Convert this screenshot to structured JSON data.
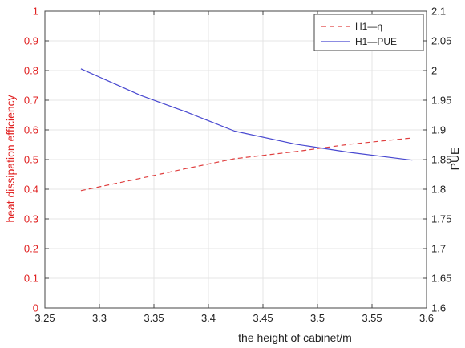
{
  "chart_data": {
    "type": "line",
    "xlabel": "the height of cabinet/m",
    "ylabel_left": "heat dissipation efficiency",
    "ylabel_right": "PUE",
    "xlim": [
      3.25,
      3.6
    ],
    "ylim_left": [
      0,
      1
    ],
    "ylim_right": [
      1.6,
      2.1
    ],
    "x_ticks": [
      "3.25",
      "3.3",
      "3.35",
      "3.4",
      "3.45",
      "3.5",
      "3.55",
      "3.6"
    ],
    "y_left_ticks": [
      "0",
      "0.1",
      "0.2",
      "0.3",
      "0.4",
      "0.5",
      "0.6",
      "0.7",
      "0.8",
      "0.9",
      "1"
    ],
    "y_right_ticks": [
      "1.6",
      "1.65",
      "1.7",
      "1.75",
      "1.8",
      "1.85",
      "1.9",
      "1.95",
      "2",
      "2.05",
      "2.1"
    ],
    "grid": true,
    "legend_position": "top-right",
    "series": [
      {
        "name": "H1—η",
        "axis": "left",
        "color": "#e04040",
        "style": "dashed",
        "points": [
          [
            3.283,
            0.395
          ],
          [
            3.338,
            0.437
          ],
          [
            3.38,
            0.47
          ],
          [
            3.424,
            0.503
          ],
          [
            3.48,
            0.527
          ],
          [
            3.53,
            0.552
          ],
          [
            3.587,
            0.573
          ]
        ]
      },
      {
        "name": "H1—PUE",
        "axis": "right",
        "color": "#4848d0",
        "style": "solid",
        "points": [
          [
            3.283,
            2.003
          ],
          [
            3.338,
            1.958
          ],
          [
            3.38,
            1.93
          ],
          [
            3.424,
            1.898
          ],
          [
            3.48,
            1.876
          ],
          [
            3.53,
            1.862
          ],
          [
            3.587,
            1.849
          ]
        ]
      }
    ],
    "colors": {
      "left_axis": "#e02020",
      "right_axis": "#222222",
      "grid": "#e4e4e4",
      "frame": "#444444"
    }
  }
}
